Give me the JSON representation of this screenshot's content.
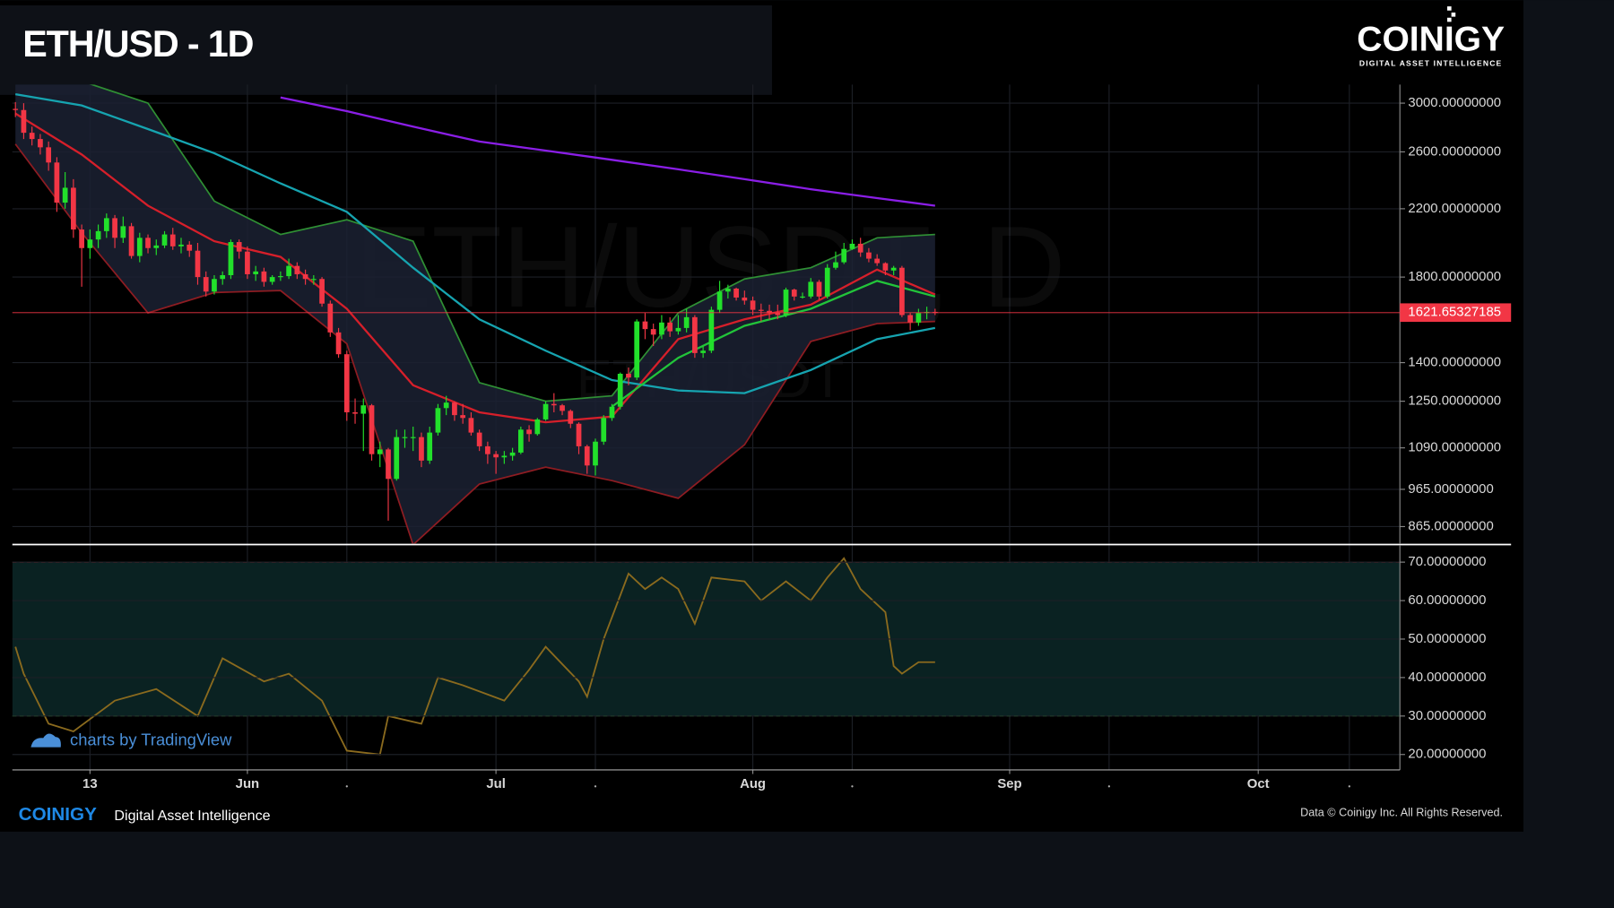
{
  "header": {
    "title": "ETH/USD - 1D",
    "logo": "COINIGY",
    "logo_tagline": "DIGITAL ASSET INTELLIGENCE"
  },
  "chart_data": [
    {
      "type": "candlestick",
      "watermark": "ETH/USDT, D",
      "watermark_sub": "ETH/USDT",
      "xlim": [
        -0.37,
        167.1
      ],
      "ylim": [
        823,
        3168
      ],
      "log_y": true,
      "grid": true,
      "yticks": [
        {
          "value": 3000,
          "label": "3000.00000000"
        },
        {
          "value": 2600,
          "label": "2600.00000000"
        },
        {
          "value": 2200,
          "label": "2200.00000000"
        },
        {
          "value": 1800,
          "label": "1800.00000000"
        },
        {
          "value": 1400,
          "label": "1400.00000000"
        },
        {
          "value": 1250,
          "label": "1250.00000000"
        },
        {
          "value": 1090,
          "label": "1090.00000000"
        },
        {
          "value": 965,
          "label": "965.00000000"
        },
        {
          "value": 865,
          "label": "865.00000000"
        }
      ],
      "last_price": 1621.65327185,
      "last_price_color": "#f23645",
      "up_color": "#22e02b",
      "down_color": "#f23645",
      "open": [
        2950,
        2940,
        2750,
        2700,
        2635,
        2520,
        2240,
        2340,
        2070,
        1960,
        2010,
        2060,
        2140,
        2020,
        2090,
        1915,
        2020,
        1960,
        1975,
        2040,
        1970,
        1980,
        1945,
        1800,
        1725,
        1790,
        1810,
        1995,
        1940,
        1815,
        1830,
        1775,
        1800,
        1805,
        1860,
        1815,
        1790,
        1790,
        1665,
        1530,
        1435,
        1210,
        1205,
        1235,
        1070,
        1085,
        995,
        1125,
        1125,
        1125,
        1050,
        1140,
        1225,
        1245,
        1200,
        1190,
        1140,
        1095,
        1070,
        1060,
        1065,
        1075,
        1150,
        1135,
        1185,
        1240,
        1235,
        1215,
        1170,
        1095,
        1035,
        1110,
        1190,
        1230,
        1355,
        1340,
        1580,
        1545,
        1520,
        1575,
        1535,
        1550,
        1600,
        1440,
        1450,
        1635,
        1725,
        1740,
        1695,
        1680,
        1635,
        1630,
        1620,
        1610,
        1735,
        1700,
        1700,
        1775,
        1700,
        1850,
        1880,
        1955,
        1985,
        1935,
        1900,
        1875,
        1835,
        1850,
        1610,
        1575,
        1620,
        1625
      ],
      "high": [
        3010,
        3000,
        2800,
        2740,
        2680,
        2560,
        2450,
        2400,
        2100,
        2070,
        2100,
        2170,
        2160,
        2150,
        2110,
        2050,
        2040,
        2010,
        2060,
        2080,
        2020,
        2000,
        1990,
        1830,
        1810,
        1830,
        2010,
        2010,
        1970,
        1860,
        1850,
        1810,
        1830,
        1900,
        1880,
        1840,
        1810,
        1800,
        1680,
        1550,
        1450,
        1260,
        1260,
        1240,
        1110,
        1090,
        1150,
        1150,
        1160,
        1140,
        1160,
        1240,
        1270,
        1250,
        1240,
        1210,
        1150,
        1110,
        1080,
        1080,
        1090,
        1160,
        1165,
        1190,
        1250,
        1280,
        1240,
        1220,
        1175,
        1100,
        1120,
        1200,
        1240,
        1360,
        1380,
        1590,
        1620,
        1570,
        1610,
        1600,
        1610,
        1640,
        1610,
        1470,
        1650,
        1780,
        1760,
        1745,
        1730,
        1700,
        1665,
        1660,
        1660,
        1745,
        1740,
        1720,
        1795,
        1785,
        1870,
        1940,
        1990,
        2010,
        2020,
        1960,
        1925,
        1880,
        1860,
        1860,
        1620,
        1640,
        1650,
        1640
      ],
      "low": [
        2880,
        2700,
        2650,
        2580,
        2460,
        2180,
        2200,
        2020,
        1750,
        1900,
        1960,
        2020,
        1960,
        1990,
        1900,
        1880,
        1930,
        1920,
        1960,
        1950,
        1930,
        1910,
        1760,
        1700,
        1710,
        1760,
        1790,
        1900,
        1790,
        1780,
        1750,
        1760,
        1780,
        1790,
        1790,
        1760,
        1760,
        1650,
        1510,
        1420,
        1180,
        1170,
        1080,
        1050,
        1030,
        880,
        990,
        1090,
        1080,
        1030,
        1040,
        1130,
        1200,
        1180,
        1170,
        1130,
        1080,
        1040,
        1010,
        1040,
        1050,
        1070,
        1110,
        1130,
        1180,
        1210,
        1200,
        1155,
        1070,
        1010,
        1005,
        1100,
        1180,
        1220,
        1310,
        1330,
        1500,
        1470,
        1500,
        1510,
        1520,
        1530,
        1420,
        1420,
        1440,
        1620,
        1690,
        1680,
        1660,
        1610,
        1580,
        1590,
        1590,
        1600,
        1680,
        1690,
        1690,
        1685,
        1690,
        1840,
        1870,
        1950,
        1910,
        1880,
        1860,
        1810,
        1810,
        1600,
        1540,
        1560,
        1590,
        1610
      ],
      "close": [
        2940,
        2750,
        2700,
        2635,
        2520,
        2240,
        2340,
        2070,
        1960,
        2010,
        2060,
        2140,
        2020,
        2090,
        1915,
        2020,
        1960,
        1975,
        2040,
        1970,
        1980,
        1945,
        1800,
        1725,
        1790,
        1810,
        1995,
        1940,
        1815,
        1830,
        1775,
        1800,
        1805,
        1860,
        1815,
        1790,
        1790,
        1665,
        1530,
        1435,
        1210,
        1205,
        1235,
        1070,
        1085,
        995,
        1125,
        1125,
        1125,
        1050,
        1140,
        1225,
        1245,
        1200,
        1190,
        1140,
        1095,
        1070,
        1060,
        1065,
        1075,
        1150,
        1135,
        1185,
        1240,
        1235,
        1215,
        1170,
        1095,
        1035,
        1110,
        1190,
        1230,
        1355,
        1340,
        1580,
        1545,
        1520,
        1575,
        1535,
        1550,
        1600,
        1440,
        1450,
        1635,
        1725,
        1740,
        1695,
        1680,
        1635,
        1630,
        1620,
        1610,
        1735,
        1700,
        1700,
        1775,
        1700,
        1850,
        1880,
        1955,
        1985,
        1935,
        1900,
        1875,
        1835,
        1850,
        1610,
        1575,
        1620,
        1625,
        1621
      ],
      "bollinger": {
        "fill": "#1b2132",
        "upper": {
          "color": "#2f8f34",
          "x": [
            0,
            8,
            16,
            24,
            32,
            40,
            48,
            56,
            64,
            72,
            80,
            88,
            96,
            104,
            111
          ],
          "values": [
            3300,
            3200,
            3000,
            2250,
            2040,
            2130,
            2000,
            1320,
            1250,
            1270,
            1620,
            1790,
            1850,
            2020,
            2040
          ]
        },
        "lower": {
          "color": "#8e1c22",
          "x": [
            0,
            8,
            16,
            24,
            32,
            40,
            48,
            56,
            64,
            72,
            80,
            88,
            96,
            104,
            111
          ],
          "values": [
            2660,
            2050,
            1620,
            1720,
            1730,
            1480,
            820,
            980,
            1030,
            990,
            940,
            1100,
            1490,
            1570,
            1580
          ]
        },
        "middle": {
          "color": "#22c43a",
          "x": [
            72,
            80,
            88,
            96,
            104,
            111
          ],
          "values": [
            1230,
            1420,
            1560,
            1640,
            1780,
            1700
          ]
        }
      },
      "moving_averages": [
        {
          "color": "#d61f2a",
          "x": [
            0,
            8,
            16,
            24,
            32,
            40,
            48,
            56,
            64,
            72,
            80,
            88,
            96,
            104,
            111
          ],
          "values": [
            2910,
            2580,
            2220,
            2000,
            1910,
            1640,
            1310,
            1210,
            1175,
            1195,
            1500,
            1590,
            1660,
            1840,
            1710
          ]
        },
        {
          "color": "#16a4b0",
          "x": [
            0,
            8,
            16,
            24,
            32,
            40,
            48,
            56,
            64,
            72,
            80,
            88,
            96,
            104,
            111
          ],
          "values": [
            3080,
            2980,
            2780,
            2590,
            2370,
            2180,
            1850,
            1590,
            1450,
            1330,
            1290,
            1280,
            1370,
            1500,
            1550
          ]
        },
        {
          "color": "#8a1ee6",
          "x": [
            32,
            40,
            48,
            56,
            64,
            72,
            80,
            88,
            96,
            104,
            111
          ],
          "values": [
            3050,
            2930,
            2800,
            2680,
            2610,
            2540,
            2470,
            2400,
            2330,
            2270,
            2220
          ]
        }
      ]
    },
    {
      "type": "line",
      "xlim": [
        -0.37,
        167.1
      ],
      "ylim": [
        16,
        74.3
      ],
      "grid": true,
      "xticks": [
        {
          "value": 9,
          "label": "13"
        },
        {
          "value": 28,
          "label": "Jun"
        },
        {
          "value": 58,
          "label": "Jul"
        },
        {
          "value": 89,
          "label": "Aug"
        },
        {
          "value": 120,
          "label": "Sep"
        },
        {
          "value": 150,
          "label": "Oct"
        }
      ],
      "xticks_minor": [
        40,
        70,
        101,
        132,
        161
      ],
      "yticks": [
        {
          "value": 70,
          "label": "70.00000000"
        },
        {
          "value": 60,
          "label": "60.00000000"
        },
        {
          "value": 50,
          "label": "50.00000000"
        },
        {
          "value": 40,
          "label": "40.00000000"
        },
        {
          "value": 30,
          "label": "30.00000000"
        },
        {
          "value": 20,
          "label": "20.00000000"
        }
      ],
      "overbought": 70,
      "oversold": 30,
      "overbought_color": "#c8302c",
      "oversold_color": "#2fb33a",
      "band_fill": "#0a2222",
      "series": [
        {
          "color": "#8a6a1e",
          "x": [
            0,
            1,
            4,
            7,
            12,
            17,
            22,
            25,
            30,
            33,
            37,
            40,
            44,
            45,
            49,
            51,
            54,
            59,
            62,
            64,
            68,
            69,
            71,
            74,
            76,
            78,
            80,
            82,
            84,
            88,
            90,
            93,
            96,
            98,
            100,
            102,
            105,
            106,
            107,
            109,
            111
          ],
          "values": [
            48,
            41,
            28,
            26,
            34,
            37,
            30,
            45,
            39,
            41,
            34,
            21,
            20,
            30,
            28,
            40,
            38,
            34,
            42,
            48,
            39,
            35,
            50,
            67,
            63,
            66,
            63,
            54,
            66,
            65,
            60,
            65,
            60,
            66,
            71,
            63,
            57,
            43,
            41,
            44,
            44
          ]
        }
      ]
    }
  ],
  "footer": {
    "credit": "charts by TradingView",
    "brand": "COINIGY",
    "tagline": "Digital Asset Intelligence",
    "copyright": "Data © Coinigy Inc. All Rights Reserved."
  }
}
